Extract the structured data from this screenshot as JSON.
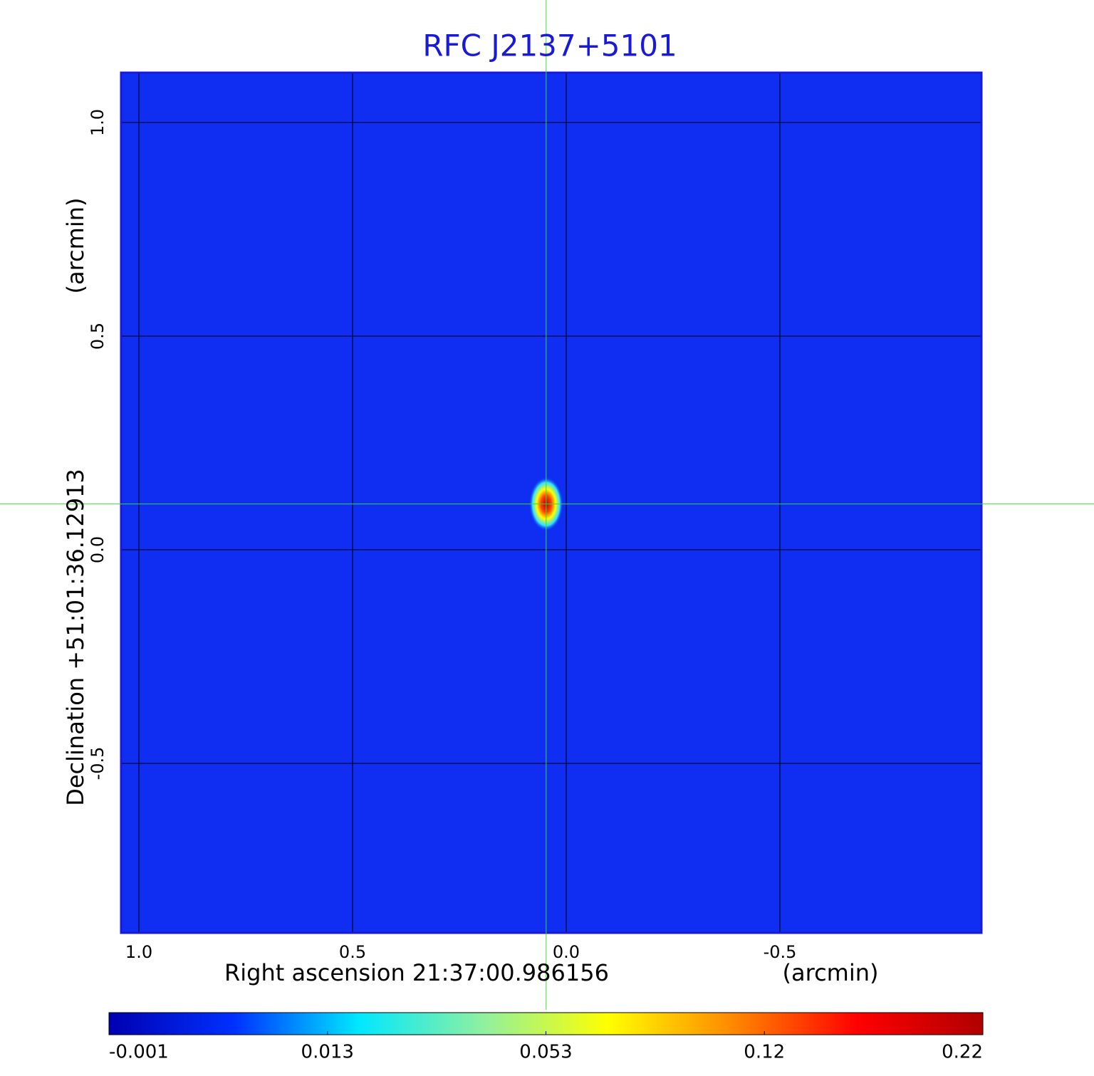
{
  "chart_data": {
    "type": "image",
    "title": "RFC J2137+5101",
    "xlabel": "Right ascension  21:37:00.986156",
    "xunit": "(arcmin)",
    "ylabel": "Declination  +51:01:36.12913",
    "yunit": "(arcmin)",
    "xlim": [
      1.0417,
      -0.9717
    ],
    "ylim": [
      -0.8967,
      1.1167
    ],
    "xticks": [
      {
        "value": 1,
        "label": "1.0"
      },
      0.5,
      {
        "value": 0,
        "label": "0.0"
      },
      -0.5
    ],
    "yticks": [
      {
        "value": 1,
        "label": "1.0"
      },
      0.5,
      {
        "value": 0,
        "label": "0.0"
      },
      -0.5
    ],
    "grid": true,
    "background_color": "#0f2ef2",
    "source": {
      "x": 0.047,
      "y": 0.107,
      "peak": 0.22
    },
    "crosshair": {
      "x": 0.047,
      "y": 0.107,
      "color": "#33dd33"
    },
    "colorbar": {
      "ticks": [
        -0.001,
        0.013,
        0.053,
        0.12,
        0.22
      ],
      "colors": [
        "#0000b0",
        "#0030ff",
        "#00e8ff",
        "#90f0a0",
        "#ffff00",
        "#ff8800",
        "#ff0000",
        "#b00000"
      ]
    }
  }
}
